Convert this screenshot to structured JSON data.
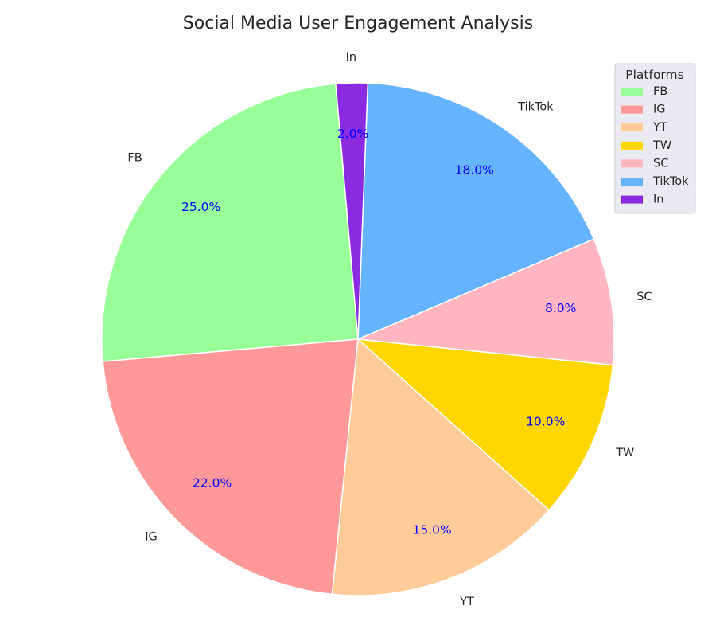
{
  "chart_data": {
    "type": "pie",
    "title": "Social Media User Engagement Analysis",
    "start_angle_deg": 95,
    "direction": "counterclockwise",
    "categories": [
      "FB",
      "IG",
      "YT",
      "TW",
      "SC",
      "TikTok",
      "In"
    ],
    "values": [
      25,
      22,
      15,
      10,
      8,
      18,
      2
    ],
    "value_labels": [
      "25.0%",
      "22.0%",
      "15.0%",
      "10.0%",
      "8.0%",
      "18.0%",
      "2.0%"
    ],
    "colors": [
      "#98ff98",
      "#ff9999",
      "#ffcc99",
      "#ffd700",
      "#ffb6c1",
      "#66b3ff",
      "#8a2be2"
    ],
    "value_label_color": "#0000ff",
    "legend": {
      "title": "Platforms",
      "placement": "top-right",
      "entries": [
        "FB",
        "IG",
        "YT",
        "TW",
        "SC",
        "TikTok",
        "In"
      ]
    }
  }
}
